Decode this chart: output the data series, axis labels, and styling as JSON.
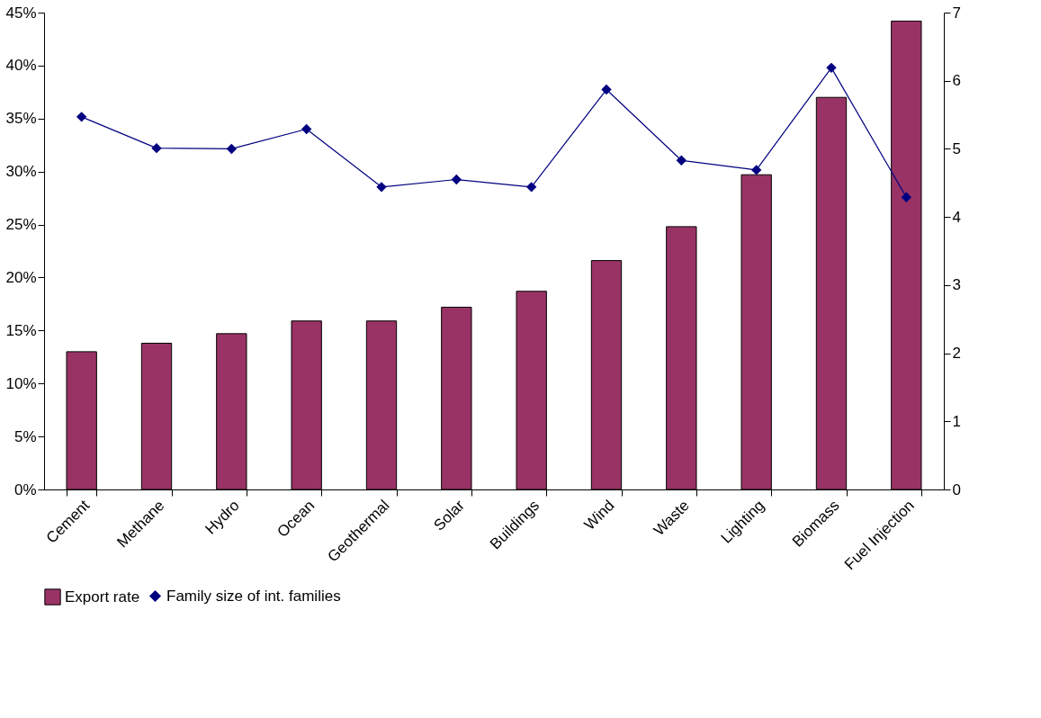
{
  "chart_data": {
    "type": "bar",
    "categories": [
      "Cement",
      "Methane",
      "Hydro",
      "Ocean",
      "Geothermal",
      "Solar",
      "Buildings",
      "Wind",
      "Waste",
      "Lighting",
      "Biomass",
      "Fuel Injection"
    ],
    "series": [
      {
        "name": "Export rate",
        "color": "#993366",
        "values": [
          13.0,
          13.8,
          14.7,
          15.9,
          15.9,
          17.2,
          18.7,
          21.6,
          24.8,
          29.7,
          37.0,
          44.2
        ]
      },
      {
        "name": "Family size of int. families",
        "type": "line",
        "axis": "y2",
        "color": "#000080",
        "marker": "diamond",
        "values": [
          5.47,
          5.01,
          5.0,
          5.29,
          4.44,
          4.55,
          4.44,
          5.87,
          4.83,
          4.69,
          6.19,
          4.29
        ]
      }
    ],
    "ylim": [
      0,
      45
    ],
    "yticks": [
      {
        "value": 0,
        "label": "0%"
      },
      {
        "value": 5,
        "label": "5%"
      },
      {
        "value": 10,
        "label": "10%"
      },
      {
        "value": 15,
        "label": "15%"
      },
      {
        "value": 20,
        "label": "20%"
      },
      {
        "value": 25,
        "label": "25%"
      },
      {
        "value": 30,
        "label": "30%"
      },
      {
        "value": 35,
        "label": "35%"
      },
      {
        "value": 40,
        "label": "40%"
      },
      {
        "value": 45,
        "label": "45%"
      }
    ],
    "y2lim": [
      0,
      7
    ],
    "y2ticks": [
      0,
      1,
      2,
      3,
      4,
      5,
      6,
      7
    ],
    "grid": false,
    "legend": "bottom"
  }
}
